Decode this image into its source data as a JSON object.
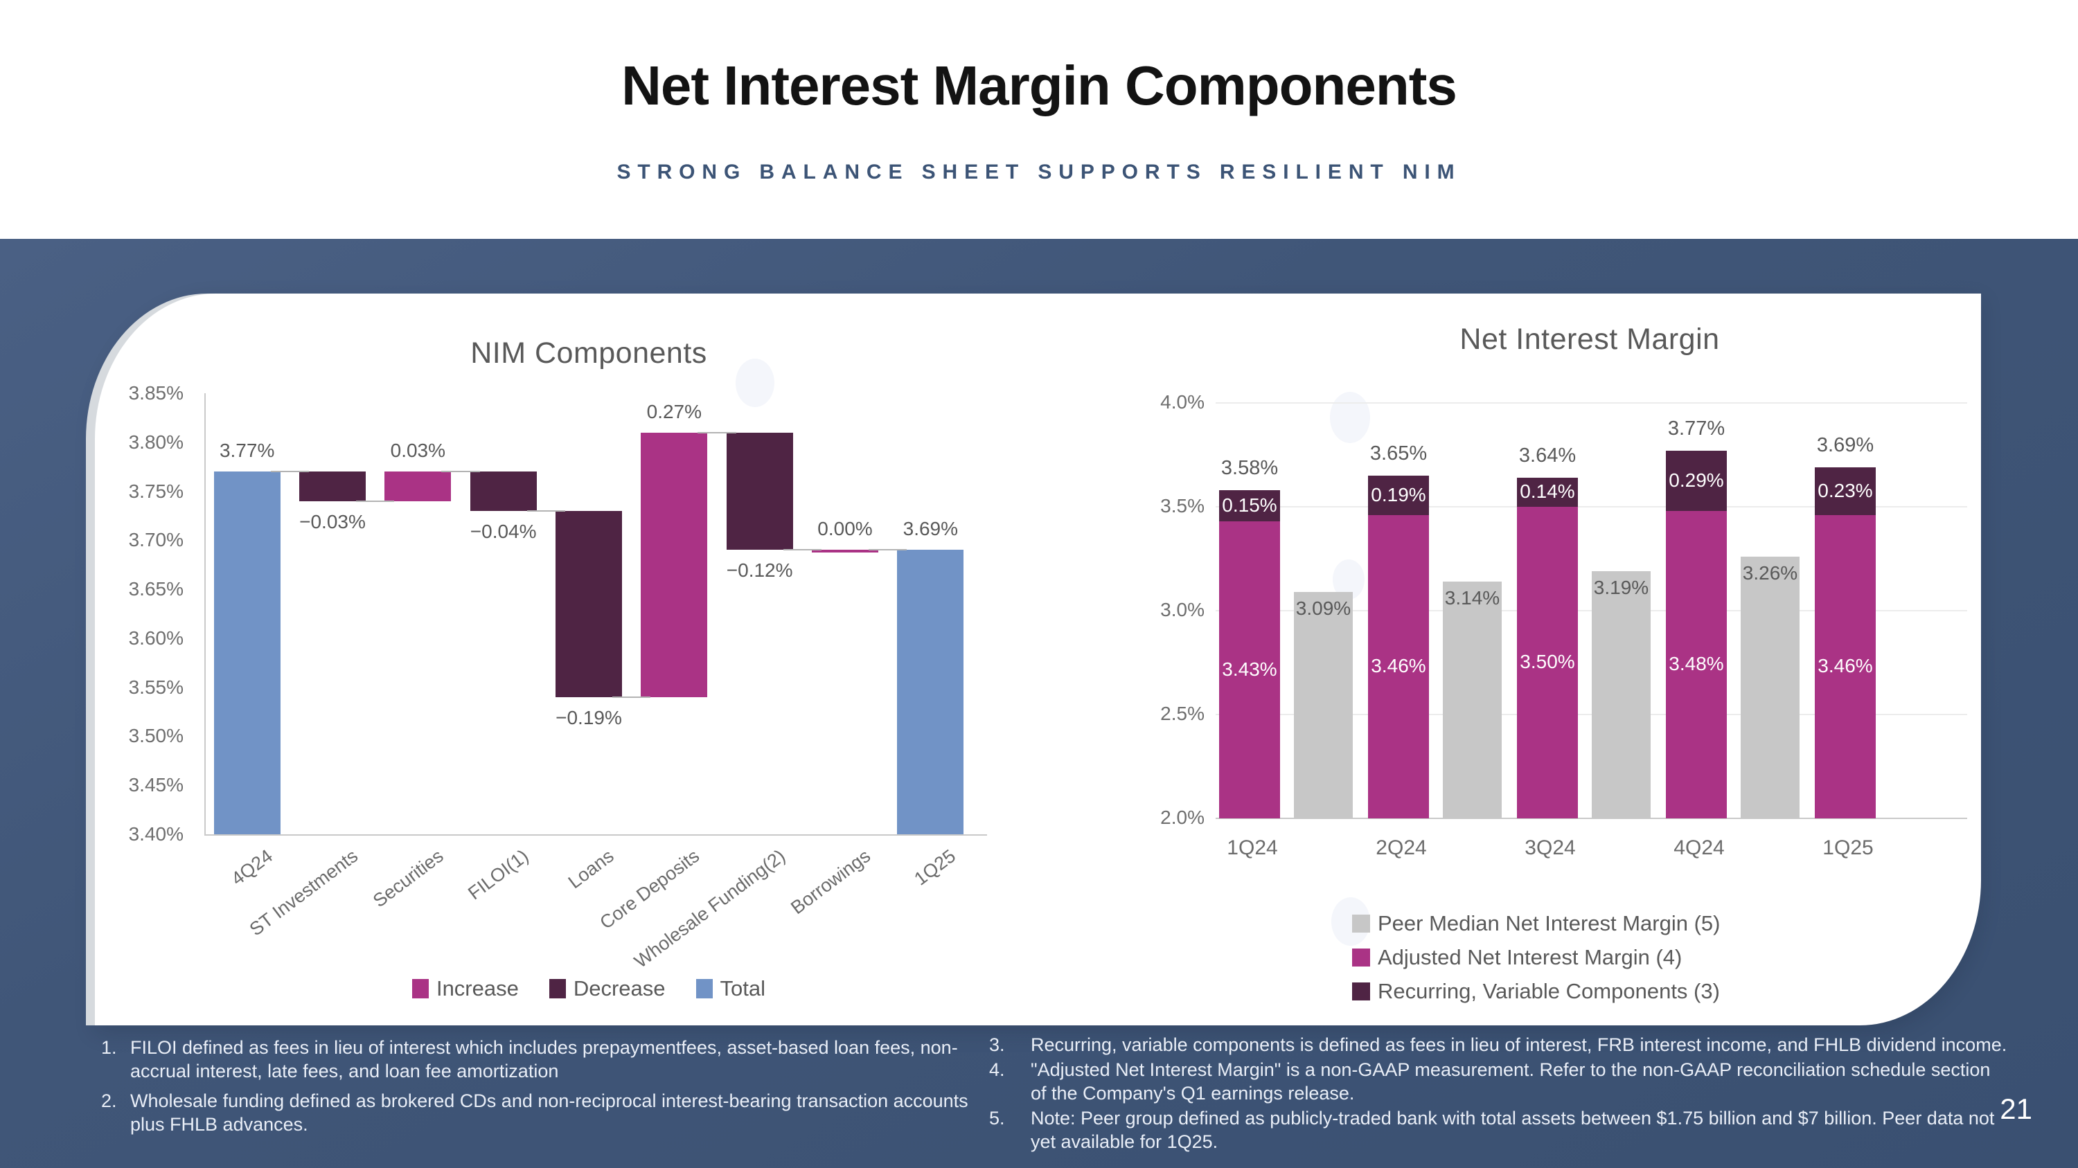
{
  "header": {
    "title": "Net Interest Margin Components",
    "subtitle": "STRONG BALANCE SHEET SUPPORTS RESILIENT NIM"
  },
  "colors": {
    "increase": "#aa3385",
    "decrease": "#4f2444",
    "total": "#7193c6",
    "peer": "#c7c7c7",
    "band": "#3d5373",
    "label_gray": "#595959"
  },
  "chart_data": [
    {
      "type": "bar",
      "subtype": "waterfall",
      "title": "NIM Components",
      "categories": [
        "4Q24",
        "ST Investments",
        "Securities",
        "FILOI(1)",
        "Loans",
        "Core Deposits",
        "Wholesale Funding(2)",
        "Borrowings",
        "1Q25"
      ],
      "values": [
        3.77,
        -0.03,
        0.03,
        -0.04,
        -0.19,
        0.27,
        -0.12,
        0.0,
        3.69
      ],
      "labels": [
        "3.77%",
        "−0.03%",
        "0.03%",
        "−0.04%",
        "−0.19%",
        "0.27%",
        "−0.12%",
        "0.00%",
        "3.69%"
      ],
      "kinds": [
        "total",
        "decrease",
        "increase",
        "decrease",
        "decrease",
        "increase",
        "decrease",
        "increase",
        "total"
      ],
      "ylim": [
        3.4,
        3.85
      ],
      "yticks": [
        "3.85%",
        "3.80%",
        "3.75%",
        "3.70%",
        "3.65%",
        "3.60%",
        "3.55%",
        "3.50%",
        "3.45%",
        "3.40%"
      ],
      "grid": "off",
      "legend_position": "bottom-center",
      "legend": [
        {
          "label": "Increase",
          "color_key": "increase"
        },
        {
          "label": "Decrease",
          "color_key": "decrease"
        },
        {
          "label": "Total",
          "color_key": "total"
        }
      ]
    },
    {
      "type": "bar",
      "subtype": "stacked-with-peer",
      "title": "Net Interest Margin",
      "categories": [
        "1Q24",
        "2Q24",
        "3Q24",
        "4Q24",
        "1Q25"
      ],
      "series": [
        {
          "name": "Adjusted Net Interest Margin (4)",
          "values": [
            3.43,
            3.46,
            3.5,
            3.48,
            3.46
          ],
          "labels": [
            "3.43%",
            "3.46%",
            "3.50%",
            "3.48%",
            "3.46%"
          ]
        },
        {
          "name": "Recurring, Variable Components (3)",
          "values": [
            0.15,
            0.19,
            0.14,
            0.29,
            0.23
          ],
          "labels": [
            "0.15%",
            "0.19%",
            "0.14%",
            "0.29%",
            "0.23%"
          ]
        },
        {
          "name": "Peer Median Net Interest Margin (5)",
          "values": [
            3.09,
            3.14,
            3.19,
            3.26,
            null
          ],
          "labels": [
            "3.09%",
            "3.14%",
            "3.19%",
            "3.26%",
            ""
          ]
        }
      ],
      "totals": [
        "3.58%",
        "3.65%",
        "3.64%",
        "3.77%",
        "3.69%"
      ],
      "ylim": [
        2.0,
        4.0
      ],
      "yticks": [
        {
          "label": "4.0%",
          "value": 4.0
        },
        {
          "label": "3.5%",
          "value": 3.5
        },
        {
          "label": "3.0%",
          "value": 3.0
        },
        {
          "label": "2.5%",
          "value": 2.5
        },
        {
          "label": "2.0%",
          "value": 2.0
        }
      ],
      "grid": "horizontal",
      "legend_position": "bottom-left",
      "legend": [
        {
          "label": "Peer Median Net Interest Margin (5)",
          "color_key": "peer"
        },
        {
          "label": "Adjusted Net Interest Margin (4)",
          "color_key": "increase"
        },
        {
          "label": "Recurring, Variable Components (3)",
          "color_key": "decrease"
        }
      ]
    }
  ],
  "footnotes": {
    "left": [
      {
        "num": "1.",
        "text": "FILOI defined as fees in lieu of interest which includes prepaymentfees, asset-based loan fees, non-accrual interest, late fees, and loan fee amortization"
      },
      {
        "num": "2.",
        "text": "Wholesale funding defined as brokered CDs and non-reciprocal interest-bearing transaction accounts plus FHLB advances."
      }
    ],
    "right": [
      {
        "num": "3.",
        "text": "Recurring, variable components is defined as fees in lieu of interest, FRB interest income, and FHLB dividend income."
      },
      {
        "num": "4.",
        "text": "\"Adjusted Net Interest Margin\" is a non-GAAP measurement. Refer to the non-GAAP reconciliation schedule section of the Company's Q1 earnings release."
      },
      {
        "num": "5.",
        "text": "Note: Peer group defined as publicly-traded bank with total assets between $1.75 billion and $7 billion. Peer data not yet available for 1Q25."
      }
    ]
  },
  "page_number": "21"
}
